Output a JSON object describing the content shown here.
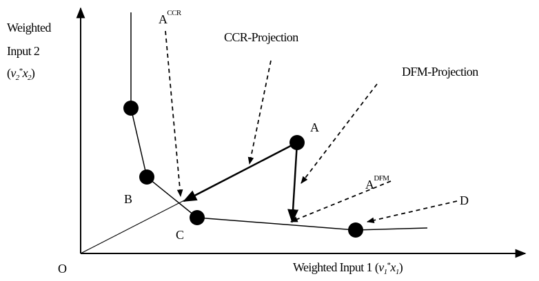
{
  "y_axis_label": {
    "lines": [
      "Weighted",
      "Input 2"
    ],
    "formula": [
      "(",
      "v",
      "2",
      "*",
      "x",
      "2",
      ")"
    ]
  },
  "x_axis_label": [
    "Weighted Input 1 (",
    "v",
    "1",
    "*",
    "x",
    "1",
    ")"
  ],
  "labels": {
    "a_ccr": [
      "A",
      "CCR"
    ],
    "ccr_projection": "CCR-Projection",
    "dfm_projection": "DFM-Projection",
    "a": "A",
    "a_dfm": [
      "A",
      "DFM"
    ],
    "d": "D",
    "b": "B",
    "c": "C",
    "o": "O"
  }
}
